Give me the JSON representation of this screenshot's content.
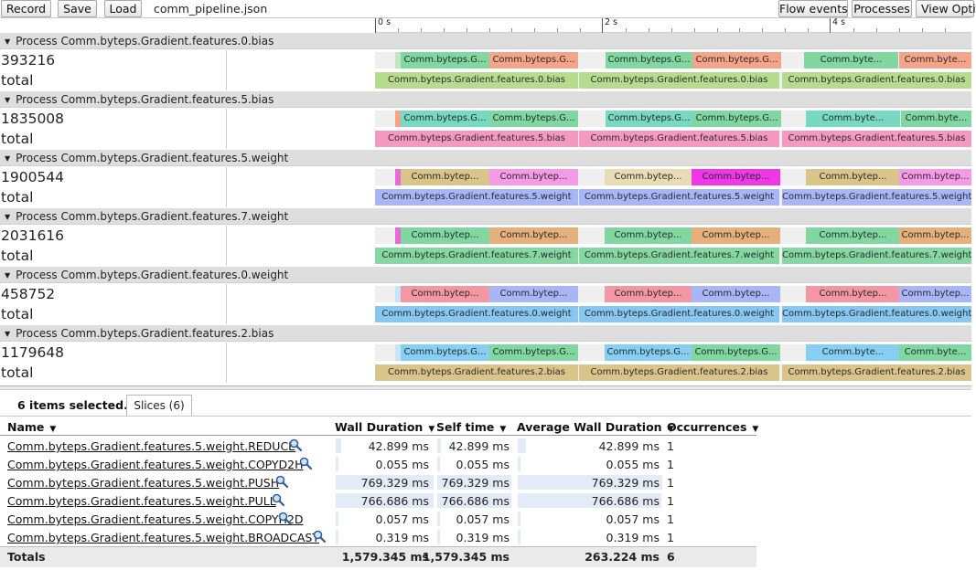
{
  "toolbar": {
    "record_label": "Record",
    "save_label": "Save",
    "load_label": "Load",
    "file_name": "comm_pipeline.json",
    "flow_events_label": "Flow events",
    "processes_label": "Processes",
    "view_options_label": "View Opti"
  },
  "ruler": {
    "ticks": [
      "0 s",
      "2 s",
      "4 s"
    ]
  },
  "processes": [
    {
      "title": "Process Comm.byteps.Gradient.features.0.bias",
      "pid": "393216",
      "total_label": "total",
      "slices": [
        {
          "label": "",
          "color": "#c4e4c2"
        },
        {
          "label": "Comm.byteps.G...",
          "color": "#80d8a0"
        },
        {
          "label": "Comm.byteps.G...",
          "color": "#f4a489"
        },
        {
          "label": "Comm.byteps.G...",
          "color": "#80d8a0"
        },
        {
          "label": "Comm.byteps.G...",
          "color": "#f4a489"
        },
        {
          "label": "Comm.byte...",
          "color": "#80d8a0"
        },
        {
          "label": "Comm.byte...",
          "color": "#f4a489"
        }
      ],
      "total_slices": [
        {
          "label": "Comm.byteps.Gradient.features.0.bias",
          "color": "#b8dc8f"
        },
        {
          "label": "Comm.byteps.Gradient.features.0.bias",
          "color": "#b8dc8f"
        },
        {
          "label": "Comm.byteps.Gradient.features.0.bias",
          "color": "#b8dc8f"
        }
      ]
    },
    {
      "title": "Process Comm.byteps.Gradient.features.5.bias",
      "pid": "1835008",
      "total_label": "total",
      "slices": [
        {
          "label": "",
          "color": "#f4a489"
        },
        {
          "label": "Comm.byteps.G...",
          "color": "#77d9c1"
        },
        {
          "label": "Comm.byteps.G...",
          "color": "#80d8a0"
        },
        {
          "label": "Comm.byteps.G...",
          "color": "#77d9c1"
        },
        {
          "label": "Comm.byteps.G...",
          "color": "#80d8a0"
        },
        {
          "label": "Comm.byte...",
          "color": "#77d9c1"
        },
        {
          "label": "Comm.byte...",
          "color": "#80d8a0"
        }
      ],
      "total_slices": [
        {
          "label": "Comm.byteps.Gradient.features.5.bias",
          "color": "#f699c2"
        },
        {
          "label": "Comm.byteps.Gradient.features.5.bias",
          "color": "#f699c2"
        },
        {
          "label": "Comm.byteps.Gradient.features.5.bias",
          "color": "#f699c2"
        }
      ]
    },
    {
      "title": "Process Comm.byteps.Gradient.features.5.weight",
      "pid": "1900544",
      "total_label": "total",
      "slices": [
        {
          "label": "",
          "color": "#e86ad8"
        },
        {
          "label": "Comm.bytep...",
          "color": "#d9c48a"
        },
        {
          "label": "Comm.bytep...",
          "color": "#f59ae6"
        },
        {
          "label": "Comm.bytep...",
          "color": "#e7dcb4"
        },
        {
          "label": "Comm.bytep...",
          "color": "#f037e8"
        },
        {
          "label": "Comm.bytep...",
          "color": "#d9c48a"
        },
        {
          "label": "Comm.bytep...",
          "color": "#f59ae6"
        }
      ],
      "total_slices": [
        {
          "label": "Comm.byteps.Gradient.features.5.weight",
          "color": "#a8b6f7"
        },
        {
          "label": "Comm.byteps.Gradient.features.5.weight",
          "color": "#a8b6f7"
        },
        {
          "label": "Comm.byteps.Gradient.features.5.weight",
          "color": "#a8b6f7"
        }
      ]
    },
    {
      "title": "Process Comm.byteps.Gradient.features.7.weight",
      "pid": "2031616",
      "total_label": "total",
      "slices": [
        {
          "label": "",
          "color": "#e86ad8"
        },
        {
          "label": "Comm.bytep...",
          "color": "#80d8a0"
        },
        {
          "label": "Comm.bytep...",
          "color": "#e6b07d"
        },
        {
          "label": "Comm.bytep...",
          "color": "#80d8a0"
        },
        {
          "label": "Comm.bytep...",
          "color": "#e6b07d"
        },
        {
          "label": "Comm.bytep...",
          "color": "#80d8a0"
        },
        {
          "label": "Comm.bytep...",
          "color": "#e6b07d"
        }
      ],
      "total_slices": [
        {
          "label": "Comm.byteps.Gradient.features.7.weight",
          "color": "#86d8a3"
        },
        {
          "label": "Comm.byteps.Gradient.features.7.weight",
          "color": "#86d8a3"
        },
        {
          "label": "Comm.byteps.Gradient.features.7.weight",
          "color": "#86d8a3"
        }
      ]
    },
    {
      "title": "Process Comm.byteps.Gradient.features.0.weight",
      "pid": "458752",
      "total_label": "total",
      "slices": [
        {
          "label": "",
          "color": "#c8e4f6"
        },
        {
          "label": "Comm.bytep...",
          "color": "#f497a4"
        },
        {
          "label": "Comm.bytep...",
          "color": "#a8b6f7"
        },
        {
          "label": "Comm.bytep...",
          "color": "#f497a4"
        },
        {
          "label": "Comm.bytep...",
          "color": "#a8b6f7"
        },
        {
          "label": "Comm.bytep...",
          "color": "#f497a4"
        },
        {
          "label": "Comm.bytep...",
          "color": "#a8b6f7"
        }
      ],
      "total_slices": [
        {
          "label": "Comm.byteps.Gradient.features.0.weight",
          "color": "#86c8f2"
        },
        {
          "label": "Comm.byteps.Gradient.features.0.weight",
          "color": "#86c8f2"
        },
        {
          "label": "Comm.byteps.Gradient.features.0.weight",
          "color": "#86c8f2"
        }
      ]
    },
    {
      "title": "Process Comm.byteps.Gradient.features.2.bias",
      "pid": "1179648",
      "total_label": "total",
      "slices": [
        {
          "label": "",
          "color": "#c8e4f6"
        },
        {
          "label": "Comm.byteps.G...",
          "color": "#86cff2"
        },
        {
          "label": "Comm.byteps.G...",
          "color": "#80d8a0"
        },
        {
          "label": "Comm.byteps.G...",
          "color": "#86cff2"
        },
        {
          "label": "Comm.byteps.G...",
          "color": "#80d8a0"
        },
        {
          "label": "Comm.byte...",
          "color": "#86cff2"
        },
        {
          "label": "Comm.byte...",
          "color": "#80d8a0"
        }
      ],
      "total_slices": [
        {
          "label": "Comm.byteps.Gradient.features.2.bias",
          "color": "#d9c48a"
        },
        {
          "label": "Comm.byteps.Gradient.features.2.bias",
          "color": "#d9c48a"
        },
        {
          "label": "Comm.byteps.Gradient.features.2.bias",
          "color": "#d9c48a"
        }
      ]
    }
  ],
  "panel": {
    "selected_count": "6 items selected.",
    "tab_label": "Slices (6)",
    "columns": {
      "name": "Name",
      "wall_duration": "Wall Duration",
      "self_time": "Self time",
      "avg_wall_duration": "Average Wall Duration",
      "occurrences": "Occurrences"
    },
    "rows": [
      {
        "name": "Comm.byteps.Gradient.features.5.weight.REDUCE",
        "wall": "42.899 ms",
        "self": "42.899 ms",
        "avg": "42.899 ms",
        "occ": "1",
        "wall_fraction": 0.027
      },
      {
        "name": "Comm.byteps.Gradient.features.5.weight.COPYD2H",
        "wall": "0.055 ms",
        "self": "0.055 ms",
        "avg": "0.055 ms",
        "occ": "1",
        "wall_fraction": 0.0
      },
      {
        "name": "Comm.byteps.Gradient.features.5.weight.PUSH",
        "wall": "769.329 ms",
        "self": "769.329 ms",
        "avg": "769.329 ms",
        "occ": "1",
        "wall_fraction": 0.487
      },
      {
        "name": "Comm.byteps.Gradient.features.5.weight.PULL",
        "wall": "766.686 ms",
        "self": "766.686 ms",
        "avg": "766.686 ms",
        "occ": "1",
        "wall_fraction": 0.485
      },
      {
        "name": "Comm.byteps.Gradient.features.5.weight.COPYH2D",
        "wall": "0.057 ms",
        "self": "0.057 ms",
        "avg": "0.057 ms",
        "occ": "1",
        "wall_fraction": 0.0
      },
      {
        "name": "Comm.byteps.Gradient.features.5.weight.BROADCAST",
        "wall": "0.319 ms",
        "self": "0.319 ms",
        "avg": "0.319 ms",
        "occ": "1",
        "wall_fraction": 0.0
      }
    ],
    "totals": {
      "label": "Totals",
      "wall": "1,579.345 ms",
      "self": "1,579.345 ms",
      "avg": "263.224 ms",
      "occ": "6"
    }
  }
}
